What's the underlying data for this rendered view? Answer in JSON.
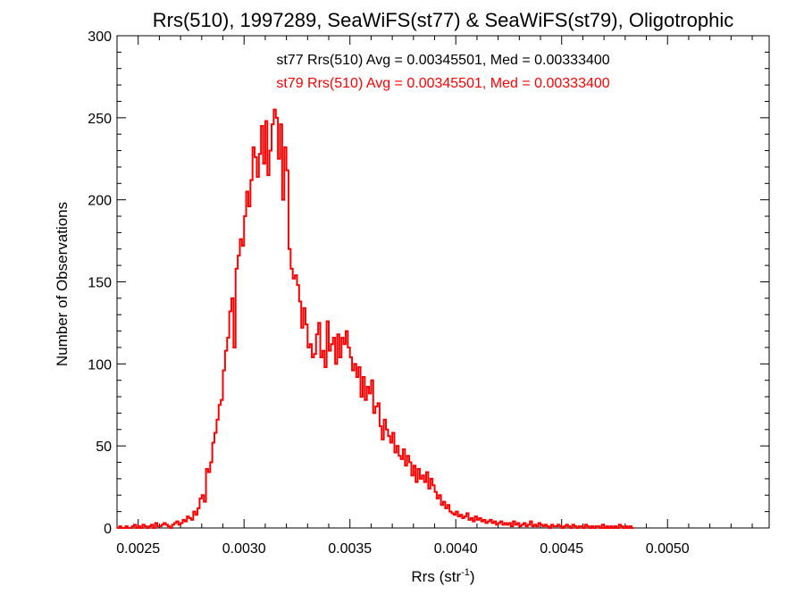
{
  "chart_data": {
    "type": "histogram",
    "title": "Rrs(510), 1997289, SeaWiFS(st77) & SeaWiFS(st79), Oligotrophic",
    "xlabel": "Rrs (str",
    "xlabel_sup": "-1",
    "xlabel_close": ")",
    "ylabel": "Number of Observations",
    "xlim": [
      0.0024,
      0.00548
    ],
    "ylim": [
      0,
      300
    ],
    "xticks": [
      0.0025,
      0.003,
      0.0035,
      0.004,
      0.0045,
      0.005
    ],
    "xtick_labels": [
      "0.0025",
      "0.0030",
      "0.0035",
      "0.0040",
      "0.0045",
      "0.0050"
    ],
    "yticks": [
      0,
      50,
      100,
      150,
      200,
      250,
      300
    ],
    "ytick_labels": [
      "0",
      "50",
      "100",
      "150",
      "200",
      "250",
      "300"
    ],
    "grid": false,
    "annotations": [
      {
        "text": "st77 Rrs(510) Avg = 0.00345501, Med = 0.00333400",
        "color": "#000000"
      },
      {
        "text": "st79 Rrs(510) Avg = 0.00345501, Med = 0.00333400",
        "color": "#ff0000"
      }
    ],
    "series": [
      {
        "color": "#ff0000",
        "bin_start": 0.0024,
        "bin_width": 1e-05,
        "values": [
          0,
          1,
          0,
          0,
          1,
          0,
          0,
          1,
          2,
          0,
          1,
          0,
          2,
          1,
          0,
          1,
          2,
          0,
          3,
          1,
          1,
          2,
          3,
          2,
          1,
          0,
          2,
          3,
          4,
          2,
          3,
          5,
          4,
          7,
          6,
          5,
          10,
          8,
          12,
          18,
          20,
          16,
          36,
          34,
          40,
          52,
          58,
          66,
          75,
          78,
          96,
          108,
          116,
          132,
          140,
          110,
          158,
          166,
          176,
          172,
          190,
          205,
          196,
          212,
          232,
          226,
          214,
          228,
          245,
          222,
          248,
          215,
          230,
          246,
          255,
          250,
          225,
          246,
          200,
          232,
          218,
          170,
          158,
          152,
          154,
          148,
          138,
          122,
          134,
          124,
          110,
          112,
          104,
          106,
          118,
          125,
          104,
          108,
          98,
          126,
          108,
          112,
          116,
          100,
          118,
          104,
          116,
          112,
          120,
          110,
          104,
          96,
          100,
          92,
          98,
          80,
          92,
          78,
          86,
          82,
          90,
          70,
          74,
          76,
          62,
          54,
          66,
          60,
          56,
          52,
          58,
          46,
          50,
          44,
          42,
          48,
          38,
          44,
          40,
          32,
          38,
          28,
          36,
          30,
          32,
          28,
          34,
          24,
          30,
          26,
          22,
          18,
          20,
          14,
          16,
          12,
          14,
          10,
          9,
          8,
          10,
          7,
          8,
          6,
          7,
          9,
          5,
          6,
          4,
          7,
          5,
          6,
          4,
          5,
          3,
          4,
          5,
          3,
          4,
          2,
          3,
          4,
          2,
          3,
          2,
          3,
          1,
          4,
          2,
          3,
          1,
          2,
          3,
          1,
          2,
          4,
          1,
          2,
          1,
          3,
          2,
          1,
          2,
          1,
          0,
          2,
          1,
          1,
          2,
          1,
          0,
          1,
          2,
          1,
          0,
          2,
          1,
          0,
          1,
          1,
          0,
          2,
          1,
          0,
          1,
          0,
          1,
          1,
          0,
          2,
          0,
          1,
          0,
          1,
          0,
          1,
          0,
          2,
          1,
          0,
          1,
          0,
          1,
          0
        ]
      }
    ]
  }
}
